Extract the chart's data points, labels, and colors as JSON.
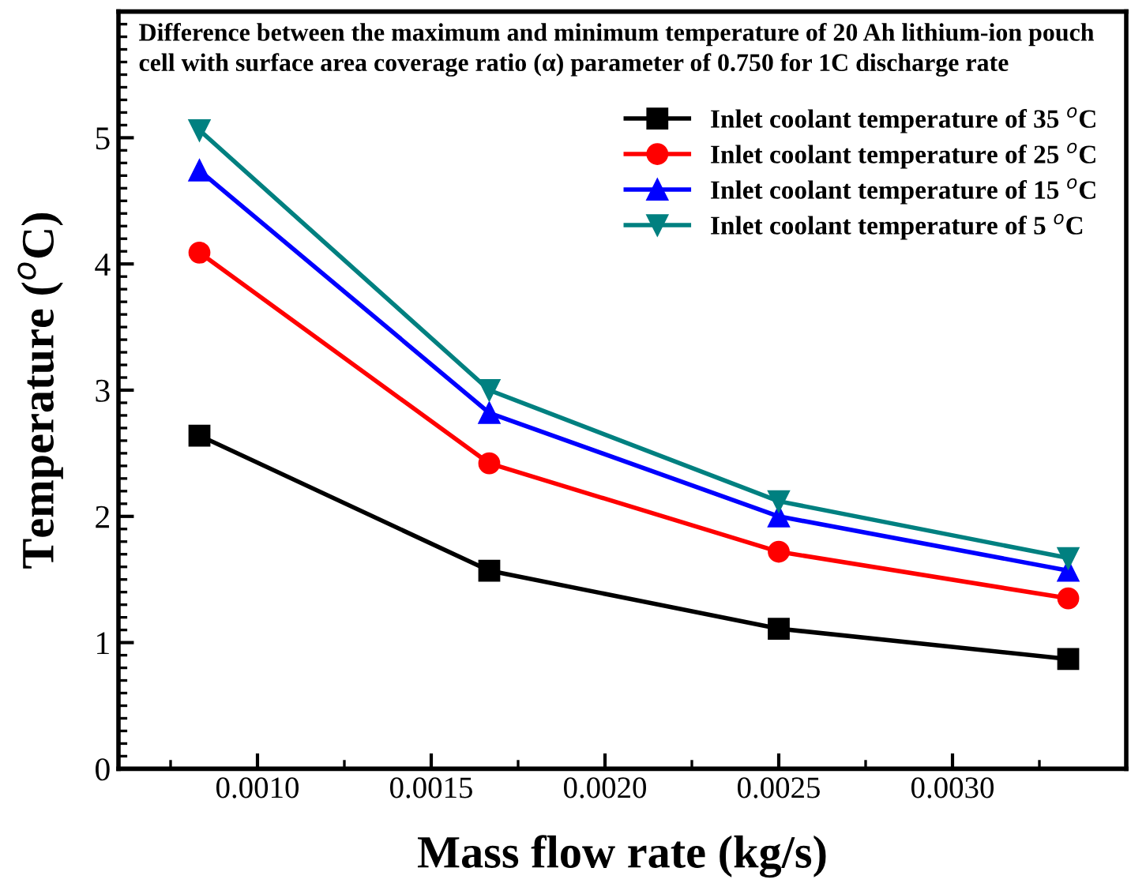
{
  "chart_data": {
    "type": "line",
    "title": "Difference between the maximum and minimum temperature of 20 Ah lithium-ion pouch cell with surface area coverage ratio (α) parameter of 0.750 for 1C discharge rate",
    "xlabel": "Mass flow rate (kg/s)",
    "ylabel": "Temperature ($^{o}$C)",
    "x": [
      0.000833,
      0.001667,
      0.0025,
      0.003333
    ],
    "series": [
      {
        "name": "Inlet coolant temperature of 35 $^{o}$C",
        "color": "#000000",
        "marker": "square",
        "values": [
          2.64,
          1.57,
          1.11,
          0.87
        ]
      },
      {
        "name": "Inlet coolant temperature of 25 $^{o}$C",
        "color": "#ff0000",
        "marker": "circle",
        "values": [
          4.09,
          2.42,
          1.72,
          1.35
        ]
      },
      {
        "name": "Inlet coolant temperature of 15 $^{o}$C",
        "color": "#0000ff",
        "marker": "triangle",
        "values": [
          4.74,
          2.82,
          2.0,
          1.57
        ]
      },
      {
        "name": "Inlet coolant temperature of 5 $^{o}$C",
        "color": "#008080",
        "marker": "triangle_down",
        "values": [
          5.06,
          3.0,
          2.12,
          1.67
        ]
      }
    ],
    "xlim": [
      0.0006,
      0.0035
    ],
    "xticks": [
      {
        "value": 0.001,
        "label": "0.0010"
      },
      {
        "value": 0.0015,
        "label": "0.0015"
      },
      {
        "value": 0.002,
        "label": "0.0020"
      },
      {
        "value": 0.0025,
        "label": "0.0025"
      },
      {
        "value": 0.003,
        "label": "0.0030"
      }
    ],
    "ylim": [
      0,
      6
    ],
    "yticks": [
      0,
      1,
      2,
      3,
      4,
      5
    ],
    "grid": false,
    "legend": "top right",
    "line_style": "solid"
  }
}
